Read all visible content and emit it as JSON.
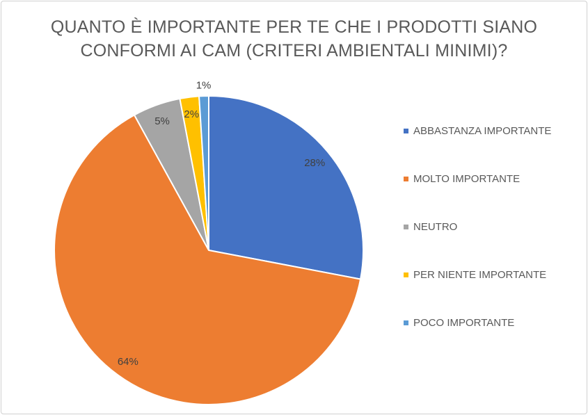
{
  "chart_data": {
    "type": "pie",
    "title": [
      "QUANTO È IMPORTANTE PER TE CHE I PRODOTTI SIANO",
      "CONFORMI AI CAM (CRITERI AMBIENTALI MINIMI)?"
    ],
    "categories": [
      "ABBASTANZA IMPORTANTE",
      "MOLTO IMPORTANTE",
      "NEUTRO",
      "PER NIENTE IMPORTANTE",
      "POCO IMPORTANTE"
    ],
    "values": [
      28,
      64,
      5,
      2,
      1
    ],
    "labels": [
      "28%",
      "64%",
      "5%",
      "2%",
      "1%"
    ],
    "colors": [
      "#4472C4",
      "#ED7D31",
      "#A5A5A5",
      "#FFC000",
      "#5B9BD5"
    ],
    "legend_position": "right"
  }
}
